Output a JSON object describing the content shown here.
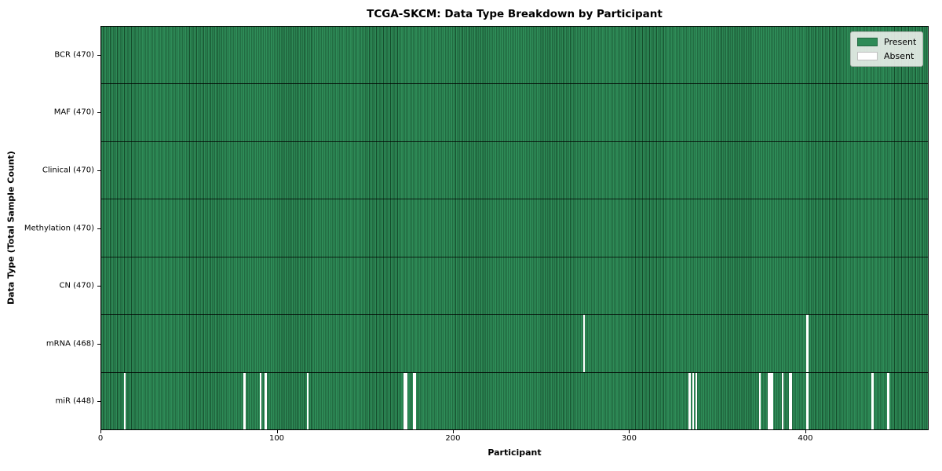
{
  "figure": {
    "title": "TCGA-SKCM: Data Type Breakdown by Participant",
    "xlabel": "Participant",
    "ylabel": "Data Type (Total Sample Count)"
  },
  "legend": {
    "items": [
      {
        "name": "present",
        "label": "Present",
        "color": "#2e8b57"
      },
      {
        "name": "absent",
        "label": "Absent",
        "color": "#ffffff"
      }
    ]
  },
  "chart_data": {
    "type": "heatmap",
    "title": "TCGA-SKCM: Data Type Breakdown by Participant",
    "xlabel": "Participant",
    "ylabel": "Data Type (Total Sample Count)",
    "x_range": [
      0,
      470
    ],
    "x_ticks": [
      0,
      100,
      200,
      300,
      400
    ],
    "n_participants": 470,
    "grid": false,
    "legend_position": "upper right",
    "colors": {
      "present": "#2e8b57",
      "absent": "#ffffff",
      "bar_edge": "rgba(0, 25, 10, 0.55)"
    },
    "rows": [
      {
        "data_type": "BCR",
        "label": "BCR (470)",
        "present_count": 470,
        "absent_count": 0,
        "absent_participants": []
      },
      {
        "data_type": "MAF",
        "label": "MAF (470)",
        "present_count": 470,
        "absent_count": 0,
        "absent_participants": []
      },
      {
        "data_type": "Clinical",
        "label": "Clinical (470)",
        "present_count": 470,
        "absent_count": 0,
        "absent_participants": []
      },
      {
        "data_type": "Methylation",
        "label": "Methylation (470)",
        "present_count": 470,
        "absent_count": 0,
        "absent_participants": []
      },
      {
        "data_type": "CN",
        "label": "CN (470)",
        "present_count": 470,
        "absent_count": 0,
        "absent_participants": []
      },
      {
        "data_type": "mRNA",
        "label": "mRNA (468)",
        "present_count": 468,
        "absent_count": 2,
        "absent_participants": [
          274,
          401
        ]
      },
      {
        "data_type": "miR",
        "label": "miR (448)",
        "present_count": 448,
        "absent_count": 22,
        "absent_participants": [
          13,
          81,
          90,
          93,
          117,
          172,
          173,
          177,
          178,
          334,
          336,
          338,
          374,
          379,
          380,
          381,
          387,
          391,
          392,
          401,
          438,
          447
        ]
      }
    ]
  }
}
